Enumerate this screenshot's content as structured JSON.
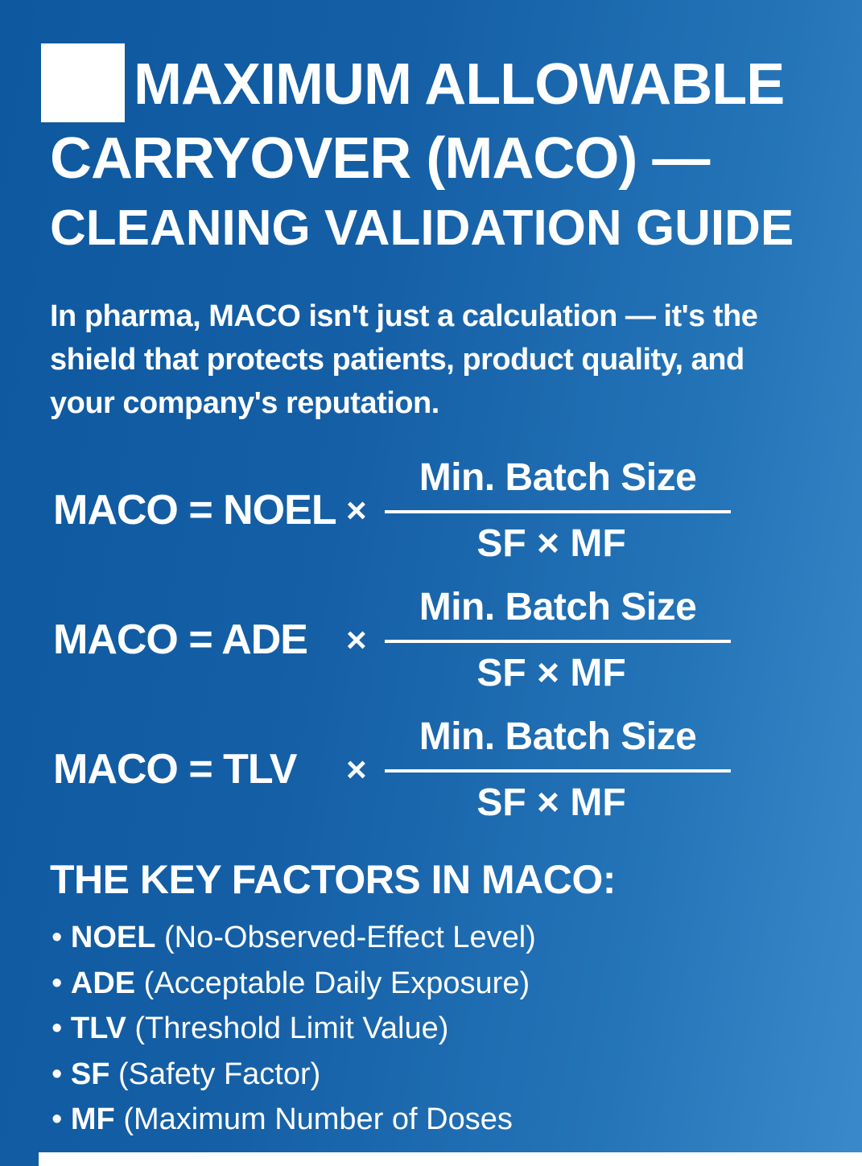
{
  "title": {
    "line1": "MAXIMUM ALLOWABLE",
    "line2": "CARRYOVER (MACO) —",
    "line3": "CLEANING VALIDATION GUIDE"
  },
  "intro": "In pharma, MACO isn't just a calculation — it's the shield that protects patients, product quality, and your company's reputation.",
  "formulas": [
    {
      "lhs": "MACO = NOEL",
      "op": "×",
      "numerator": "Min. Batch Size",
      "denominator": "SF × MF"
    },
    {
      "lhs": "MACO = ADE",
      "op": "×",
      "numerator": "Min. Batch Size",
      "denominator": "SF × MF"
    },
    {
      "lhs": "MACO = TLV",
      "op": "×",
      "numerator": "Min. Batch Size",
      "denominator": "SF × MF"
    }
  ],
  "key_factors": {
    "heading": "THE KEY FACTORS IN MACO:",
    "items": [
      {
        "term": "NOEL",
        "desc": "(No-Observed-Effect Level)"
      },
      {
        "term": "ADE",
        "desc": "(Acceptable Daily Exposure)"
      },
      {
        "term": "TLV",
        "desc": "(Threshold Limit Value)"
      },
      {
        "term": "SF",
        "desc": "(Safety Factor)"
      },
      {
        "term": "MF",
        "desc": "(Maximum Number of Doses"
      }
    ]
  },
  "colors": {
    "background_start": "#0d589f",
    "background_end": "#3a8acb",
    "text": "#ffffff"
  }
}
